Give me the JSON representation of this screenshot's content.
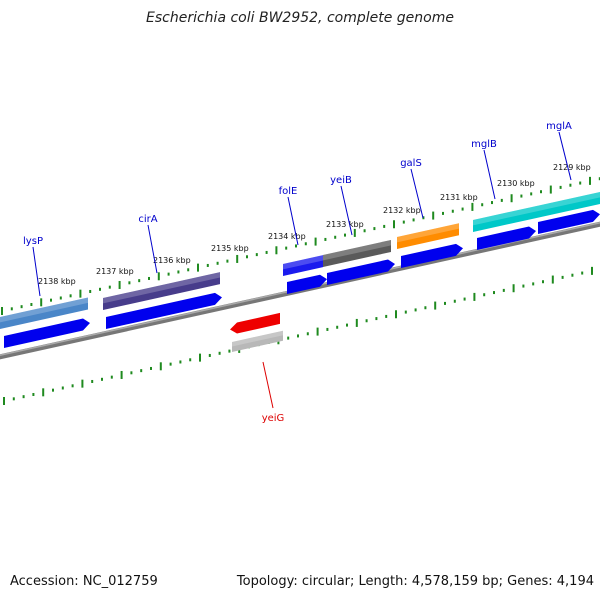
{
  "title": "Escherichia coli BW2952, complete genome",
  "accession": "Accession: NC_012759",
  "summary": "Topology: circular; Length: 4,578,159 bp; Genes: 4,194",
  "colors": {
    "backbone": "#7a7a7a",
    "ticks": "#1f8a1f",
    "cds": "#0000ee",
    "label_forward": "#0000cc",
    "label_reverse": "#dd0000"
  },
  "scale_labels": [
    "2138 kbp",
    "2137 kbp",
    "2136 kbp",
    "2135 kbp",
    "2134 kbp",
    "2133 kbp",
    "2132 kbp",
    "2131 kbp",
    "2130 kbp",
    "2129 kbp"
  ],
  "genes": [
    {
      "name": "lysP",
      "strand": "forward",
      "color": "#4a86c8"
    },
    {
      "name": "cirA",
      "strand": "forward",
      "color": "#473c8b"
    },
    {
      "name": "folE",
      "strand": "forward",
      "color": "#1a1aee"
    },
    {
      "name": "yeiB",
      "strand": "forward",
      "color": "#5a5a5a"
    },
    {
      "name": "galS",
      "strand": "forward",
      "color": "#ff8c00"
    },
    {
      "name": "mglB",
      "strand": "forward",
      "color": "#00c8c8"
    },
    {
      "name": "mglA",
      "strand": "forward",
      "color": "#00c8c8"
    },
    {
      "name": "yeiG",
      "strand": "reverse",
      "color": "#ee0000"
    }
  ]
}
